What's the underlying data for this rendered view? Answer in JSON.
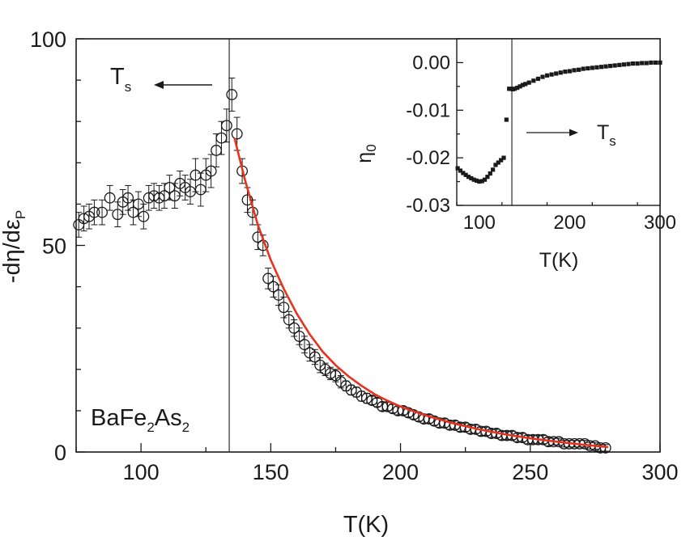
{
  "chart_data": [
    {
      "type": "scatter",
      "role": "main",
      "xlabel": "T(K)",
      "ylabel": "-dη/dε_P",
      "ylabel_parts": {
        "main": "-dη/dε",
        "sub": "P"
      },
      "xlim": [
        75,
        300
      ],
      "ylim": [
        0,
        100
      ],
      "xticks": [
        100,
        150,
        200,
        250,
        300
      ],
      "yticks": [
        0,
        50,
        100
      ],
      "x_minor_step": 25,
      "y_minor_step": 10,
      "grid": false,
      "annotations": {
        "compound": {
          "parts": [
            "BaFe",
            "2",
            "As",
            "2"
          ]
        },
        "transition": {
          "main": "T",
          "sub": "s",
          "arrow_direction": "left"
        },
        "vertical_line_x": 134
      },
      "series": [
        {
          "kind": "data_with_error_bars",
          "marker": "open-circle",
          "color": "#1a1a1a",
          "x": [
            76,
            78,
            80,
            82,
            85,
            88,
            91,
            93,
            95,
            97,
            99,
            101,
            103,
            105,
            107,
            109,
            111,
            113,
            115,
            117,
            119,
            121,
            123,
            125,
            127,
            129,
            131,
            133,
            135,
            137,
            139,
            141,
            143,
            145,
            147,
            149,
            151,
            153,
            155,
            157,
            159,
            161,
            163,
            165,
            167,
            169,
            171,
            173,
            175,
            177,
            179,
            181,
            183,
            185,
            187,
            189,
            191,
            193,
            195,
            197,
            199,
            201,
            203,
            205,
            207,
            209,
            211,
            213,
            215,
            217,
            219,
            221,
            223,
            225,
            227,
            229,
            231,
            233,
            235,
            237,
            239,
            241,
            243,
            245,
            247,
            249,
            251,
            253,
            255,
            257,
            259,
            261,
            263,
            265,
            267,
            269,
            271,
            273,
            275,
            277,
            279
          ],
          "y": [
            55,
            56.5,
            57,
            58,
            58,
            61.5,
            57.5,
            60.5,
            61.5,
            58,
            60,
            57,
            61.5,
            62,
            61.5,
            62,
            64,
            62,
            65,
            64,
            63,
            67,
            63.5,
            67,
            68,
            73,
            76,
            79,
            86.5,
            77,
            68,
            61,
            58,
            52,
            50,
            42,
            40,
            38,
            35,
            32,
            30,
            28,
            26,
            24,
            23,
            21,
            20,
            19,
            18.5,
            17,
            16,
            15,
            14.5,
            13.5,
            13,
            12.5,
            12,
            11,
            11,
            10.5,
            10,
            10,
            9.5,
            9,
            8.5,
            8,
            8,
            7.5,
            7,
            7,
            6.5,
            6.5,
            6,
            6,
            5.5,
            5.5,
            5,
            5,
            4.5,
            4.5,
            4,
            4,
            4,
            3.5,
            3.5,
            3,
            3,
            3,
            3,
            2.5,
            2.5,
            2.5,
            2,
            2,
            2,
            2,
            2,
            1.5,
            1.5,
            1,
            1
          ],
          "yerr": [
            3,
            3,
            3,
            3,
            3,
            3,
            3,
            3,
            3,
            3,
            3,
            3,
            3,
            3,
            3,
            3,
            3,
            3,
            3,
            3,
            3,
            4,
            4,
            4,
            4,
            4,
            4,
            4,
            4,
            4,
            3,
            3,
            3,
            3,
            2.5,
            2.5,
            2.5,
            2.5,
            2.5,
            2,
            2,
            2,
            2,
            2,
            1.8,
            1.8,
            1.5,
            1.5,
            1.5,
            1.5,
            1.2,
            1.2,
            1.2,
            1.2,
            1.2,
            1,
            1,
            1,
            1,
            1,
            1,
            1,
            1,
            1,
            1,
            1,
            1,
            1,
            1,
            1,
            1,
            1,
            1,
            1,
            1,
            1,
            1,
            1,
            1,
            1,
            1,
            1,
            1,
            1,
            1,
            1,
            1,
            1,
            1,
            1,
            0.8,
            0.8,
            0.8,
            0.8,
            0.8,
            0.8,
            0.8,
            0.8,
            0.8,
            0.8,
            0.8
          ]
        },
        {
          "kind": "fit_line",
          "color": "#e8321e",
          "x": [
            136,
            140,
            145,
            150,
            155,
            160,
            165,
            170,
            175,
            180,
            185,
            190,
            195,
            200,
            210,
            220,
            230,
            240,
            250,
            260,
            270,
            280
          ],
          "y": [
            76,
            66,
            55,
            46.5,
            39.5,
            33.5,
            28.5,
            24.3,
            21,
            18.3,
            16,
            14,
            12.4,
            11,
            8.8,
            7,
            5.5,
            4.3,
            3.3,
            2.5,
            1.8,
            1.2
          ]
        }
      ]
    },
    {
      "type": "scatter",
      "role": "inset",
      "xlabel": "T(K)",
      "ylabel": "η_0",
      "ylabel_parts": {
        "main": "η",
        "sub": "0"
      },
      "xlim": [
        75,
        300
      ],
      "ylim": [
        -0.03,
        0.005
      ],
      "xticks": [
        100,
        200,
        300
      ],
      "xtick_labels": [
        "100",
        "200",
        "300"
      ],
      "yticks": [
        -0.03,
        -0.02,
        -0.01,
        0.0
      ],
      "ytick_labels": [
        "-0.03",
        "-0.02",
        "-0.01",
        "0.00"
      ],
      "x_minor_step": 50,
      "y_minor_step": 0.005,
      "grid": false,
      "annotations": {
        "transition": {
          "main": "T",
          "sub": "s",
          "arrow_direction": "right"
        },
        "vertical_line_x": 136
      },
      "series": [
        {
          "kind": "data",
          "marker": "filled-square",
          "color": "#1a1a1a",
          "x": [
            76,
            79,
            82,
            85,
            88,
            91,
            94,
            97,
            100,
            103,
            106,
            109,
            112,
            115,
            118,
            121,
            124,
            127,
            130,
            133,
            135,
            137,
            139,
            142,
            145,
            148,
            151,
            155,
            160,
            165,
            170,
            175,
            180,
            185,
            190,
            195,
            200,
            205,
            210,
            215,
            220,
            225,
            230,
            235,
            240,
            245,
            250,
            255,
            260,
            265,
            270,
            275,
            280,
            285,
            290,
            295,
            300
          ],
          "y": [
            -0.0222,
            -0.0227,
            -0.0232,
            -0.0236,
            -0.024,
            -0.0243,
            -0.0246,
            -0.0248,
            -0.025,
            -0.0249,
            -0.0246,
            -0.024,
            -0.0233,
            -0.0225,
            -0.0215,
            -0.021,
            -0.0205,
            -0.02,
            -0.012,
            -0.0055,
            -0.0055,
            -0.0056,
            -0.0055,
            -0.0053,
            -0.005,
            -0.0047,
            -0.0045,
            -0.0042,
            -0.0038,
            -0.0034,
            -0.003,
            -0.0027,
            -0.0025,
            -0.0023,
            -0.0021,
            -0.0019,
            -0.0018,
            -0.0016,
            -0.0015,
            -0.0013,
            -0.0012,
            -0.0011,
            -0.001,
            -0.0009,
            -0.0008,
            -0.0007,
            -0.0006,
            -0.0005,
            -0.0004,
            -0.0003,
            -0.0002,
            -0.0002,
            -0.0001,
            -0.0001,
            0.0,
            0.0,
            0.0
          ]
        }
      ]
    }
  ]
}
